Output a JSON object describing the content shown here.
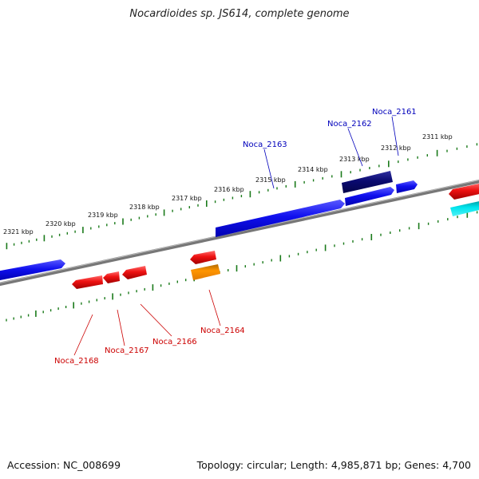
{
  "title": "Nocardioides sp. JS614, complete genome",
  "footer": {
    "accession": "Accession: NC_008699",
    "summary": "Topology: circular; Length: 4,985,871 bp; Genes: 4,700"
  },
  "colors": {
    "backbone": "#888888",
    "tick": "#1a7a1a",
    "forward_gene": "#1010ee",
    "forward_gene_dark": "#0a0a70",
    "reverse_gene": "#ee1111",
    "reverse_gene_orange": "#ff9500",
    "reverse_gene_cyan": "#00e5ee",
    "forward_label": "#0000bb",
    "reverse_label": "#cc0000"
  },
  "ruler": {
    "kbp_labels": [
      "2321 kbp",
      "2320 kbp",
      "2319 kbp",
      "2318 kbp",
      "2317 kbp",
      "2316 kbp",
      "2315 kbp",
      "2314 kbp",
      "2313 kbp",
      "2312 kbp",
      "2311 kbp"
    ]
  },
  "gene_labels": {
    "forward": [
      "Noca_2163",
      "Noca_2162",
      "Noca_2161"
    ],
    "reverse": [
      "Noca_2168",
      "Noca_2167",
      "Noca_2166",
      "Noca_2164"
    ]
  }
}
